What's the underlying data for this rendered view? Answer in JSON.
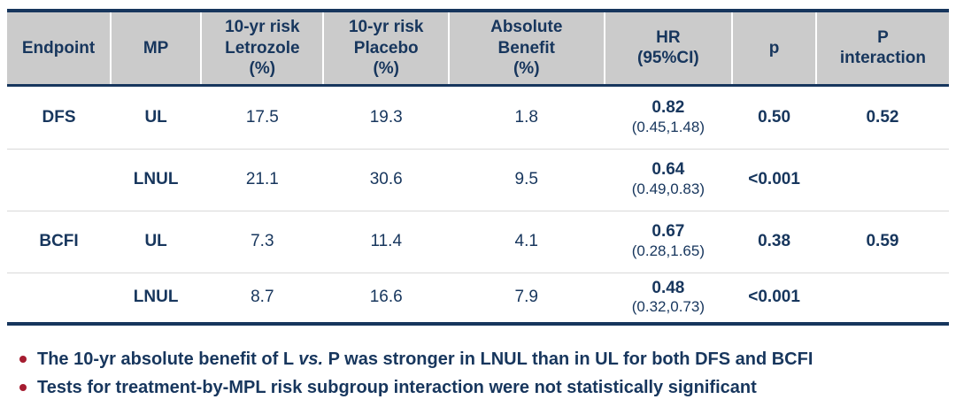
{
  "colors": {
    "navy": "#17365d",
    "header_bg": "#cbcbcb",
    "row_line": "#d9d9d9",
    "bullet_red": "#a51c30"
  },
  "table": {
    "columns": [
      "Endpoint",
      "MP",
      "10-yr risk\nLetrozole\n(%)",
      "10-yr risk\nPlacebo\n(%)",
      "Absolute\nBenefit\n(%)",
      "HR\n(95%CI)",
      "p",
      "P\ninteraction"
    ],
    "rows": [
      {
        "endpoint": "DFS",
        "mp": "UL",
        "letrozole": "17.5",
        "placebo": "19.3",
        "benefit": "1.8",
        "hr": "0.82",
        "ci": "(0.45,1.48)",
        "p": "0.50",
        "p_interaction": "0.52"
      },
      {
        "endpoint": "",
        "mp": "LNUL",
        "letrozole": "21.1",
        "placebo": "30.6",
        "benefit": "9.5",
        "hr": "0.64",
        "ci": "(0.49,0.83)",
        "p": "<0.001",
        "p_interaction": ""
      },
      {
        "endpoint": "BCFI",
        "mp": "UL",
        "letrozole": "7.3",
        "placebo": "11.4",
        "benefit": "4.1",
        "hr": "0.67",
        "ci": "(0.28,1.65)",
        "p": "0.38",
        "p_interaction": "0.59"
      },
      {
        "endpoint": "",
        "mp": "LNUL",
        "letrozole": "8.7",
        "placebo": "16.6",
        "benefit": "7.9",
        "hr": "0.48",
        "ci": "(0.32,0.73)",
        "p": "<0.001",
        "p_interaction": ""
      }
    ]
  },
  "bullets": [
    {
      "pre": "The 10-yr absolute benefit of L ",
      "emph": "vs.",
      "post": " P was stronger in LNUL than in UL for both DFS and BCFI"
    },
    {
      "pre": "Tests for treatment-by-MPL risk subgroup interaction were not statistically significant",
      "emph": "",
      "post": ""
    }
  ]
}
